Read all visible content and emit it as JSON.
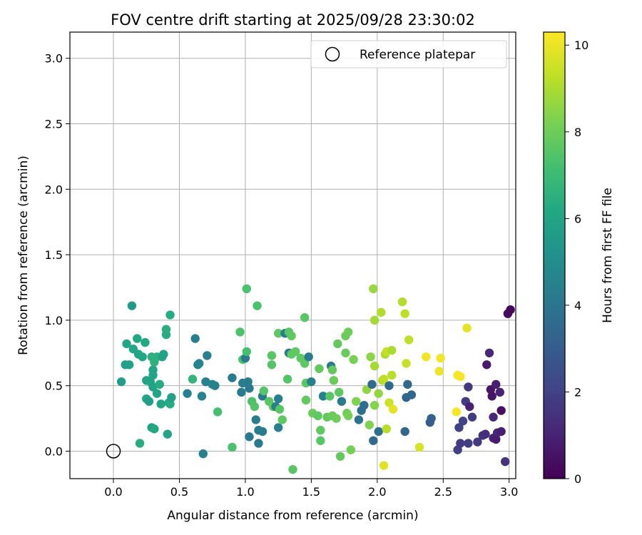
{
  "chart_data": {
    "type": "scatter",
    "title": "FOV centre drift starting at 2025/09/28 23:30:02",
    "xlabel": "Angular distance from reference (arcmin)",
    "ylabel": "Rotation from reference (arcmin)",
    "xlim": [
      -0.33,
      3.05
    ],
    "ylim": [
      -0.21,
      3.2
    ],
    "xticks": [
      "0.0",
      "0.5",
      "1.0",
      "1.5",
      "2.0",
      "2.5",
      "3.0"
    ],
    "yticks": [
      "0.0",
      "0.5",
      "1.0",
      "1.5",
      "2.0",
      "2.5",
      "3.0"
    ],
    "grid": true,
    "legend": {
      "position": "top-right",
      "entries": [
        "Reference platepar"
      ]
    },
    "colorbar": {
      "label": "Hours from first FF file",
      "colormap": "viridis",
      "range": [
        0,
        10.3
      ],
      "ticks": [
        "0",
        "2",
        "4",
        "6",
        "8",
        "10"
      ]
    },
    "reference_point": {
      "x": 0.0,
      "y": 0.0
    },
    "points": [
      {
        "x": 0.06,
        "y": 0.53,
        "h": 5.7
      },
      {
        "x": 0.09,
        "y": 0.66,
        "h": 5.8
      },
      {
        "x": 0.1,
        "y": 0.82,
        "h": 6.0
      },
      {
        "x": 0.12,
        "y": 0.66,
        "h": 5.9
      },
      {
        "x": 0.14,
        "y": 1.11,
        "h": 5.6
      },
      {
        "x": 0.15,
        "y": 0.78,
        "h": 6.1
      },
      {
        "x": 0.18,
        "y": 0.86,
        "h": 6.2
      },
      {
        "x": 0.19,
        "y": 0.74,
        "h": 6.0
      },
      {
        "x": 0.2,
        "y": 0.06,
        "h": 6.4
      },
      {
        "x": 0.22,
        "y": 0.72,
        "h": 6.1
      },
      {
        "x": 0.24,
        "y": 0.83,
        "h": 6.2
      },
      {
        "x": 0.25,
        "y": 0.54,
        "h": 5.9
      },
      {
        "x": 0.25,
        "y": 0.4,
        "h": 6.1
      },
      {
        "x": 0.27,
        "y": 0.38,
        "h": 5.7
      },
      {
        "x": 0.28,
        "y": 0.53,
        "h": 6.0
      },
      {
        "x": 0.29,
        "y": 0.72,
        "h": 6.5
      },
      {
        "x": 0.29,
        "y": 0.18,
        "h": 5.8
      },
      {
        "x": 0.3,
        "y": 0.58,
        "h": 6.1
      },
      {
        "x": 0.3,
        "y": 0.62,
        "h": 6.0
      },
      {
        "x": 0.3,
        "y": 0.49,
        "h": 5.9
      },
      {
        "x": 0.31,
        "y": 0.17,
        "h": 6.2
      },
      {
        "x": 0.31,
        "y": 0.68,
        "h": 6.6
      },
      {
        "x": 0.33,
        "y": 0.72,
        "h": 6.6
      },
      {
        "x": 0.33,
        "y": 0.44,
        "h": 6.0
      },
      {
        "x": 0.35,
        "y": 0.51,
        "h": 6.3
      },
      {
        "x": 0.36,
        "y": 0.36,
        "h": 6.0
      },
      {
        "x": 0.37,
        "y": 0.72,
        "h": 6.0
      },
      {
        "x": 0.38,
        "y": 0.74,
        "h": 5.9
      },
      {
        "x": 0.4,
        "y": 0.89,
        "h": 6.3
      },
      {
        "x": 0.4,
        "y": 0.93,
        "h": 6.4
      },
      {
        "x": 0.41,
        "y": 0.13,
        "h": 6.0
      },
      {
        "x": 0.42,
        "y": 0.37,
        "h": 6.1
      },
      {
        "x": 0.43,
        "y": 0.36,
        "h": 6.3
      },
      {
        "x": 0.43,
        "y": 1.04,
        "h": 6.3
      },
      {
        "x": 0.44,
        "y": 0.41,
        "h": 5.8
      },
      {
        "x": 0.56,
        "y": 0.44,
        "h": 4.4
      },
      {
        "x": 0.6,
        "y": 0.55,
        "h": 6.7
      },
      {
        "x": 0.62,
        "y": 0.86,
        "h": 4.4
      },
      {
        "x": 0.64,
        "y": 0.66,
        "h": 4.5
      },
      {
        "x": 0.65,
        "y": 0.67,
        "h": 4.6
      },
      {
        "x": 0.67,
        "y": 0.42,
        "h": 4.6
      },
      {
        "x": 0.68,
        "y": -0.02,
        "h": 4.5
      },
      {
        "x": 0.7,
        "y": 0.53,
        "h": 4.5
      },
      {
        "x": 0.71,
        "y": 0.73,
        "h": 4.4
      },
      {
        "x": 0.75,
        "y": 0.51,
        "h": 4.7
      },
      {
        "x": 0.77,
        "y": 0.5,
        "h": 4.5
      },
      {
        "x": 0.79,
        "y": 0.3,
        "h": 7.2
      },
      {
        "x": 0.9,
        "y": 0.56,
        "h": 4.3
      },
      {
        "x": 0.9,
        "y": 0.03,
        "h": 7.3
      },
      {
        "x": 0.96,
        "y": 0.91,
        "h": 7.4
      },
      {
        "x": 0.97,
        "y": 0.45,
        "h": 4.2
      },
      {
        "x": 0.98,
        "y": 0.52,
        "h": 4.3
      },
      {
        "x": 0.98,
        "y": 0.7,
        "h": 7.4
      },
      {
        "x": 1.0,
        "y": 0.71,
        "h": 4.3
      },
      {
        "x": 1.01,
        "y": 1.24,
        "h": 7.3
      },
      {
        "x": 1.01,
        "y": 0.76,
        "h": 7.2
      },
      {
        "x": 1.02,
        "y": 0.53,
        "h": 4.3
      },
      {
        "x": 1.03,
        "y": 0.11,
        "h": 4.2
      },
      {
        "x": 1.03,
        "y": 0.48,
        "h": 4.2
      },
      {
        "x": 1.05,
        "y": 0.38,
        "h": 7.4
      },
      {
        "x": 1.07,
        "y": 0.34,
        "h": 7.5
      },
      {
        "x": 1.08,
        "y": 0.24,
        "h": 4.3
      },
      {
        "x": 1.09,
        "y": 1.11,
        "h": 7.3
      },
      {
        "x": 1.1,
        "y": 0.06,
        "h": 4.2
      },
      {
        "x": 1.1,
        "y": 0.16,
        "h": 4.3
      },
      {
        "x": 1.13,
        "y": 0.15,
        "h": 4.3
      },
      {
        "x": 1.13,
        "y": 0.42,
        "h": 4.2
      },
      {
        "x": 1.14,
        "y": 0.46,
        "h": 7.5
      },
      {
        "x": 1.18,
        "y": 0.38,
        "h": 7.6
      },
      {
        "x": 1.2,
        "y": 0.73,
        "h": 7.6
      },
      {
        "x": 1.2,
        "y": 0.66,
        "h": 7.5
      },
      {
        "x": 1.21,
        "y": 0.34,
        "h": 7.8
      },
      {
        "x": 1.23,
        "y": 0.34,
        "h": 4.4
      },
      {
        "x": 1.25,
        "y": 0.18,
        "h": 4.5
      },
      {
        "x": 1.25,
        "y": 0.4,
        "h": 4.4
      },
      {
        "x": 1.26,
        "y": 0.32,
        "h": 7.6
      },
      {
        "x": 1.25,
        "y": 0.9,
        "h": 7.7
      },
      {
        "x": 1.28,
        "y": 0.24,
        "h": 7.7
      },
      {
        "x": 1.3,
        "y": 0.9,
        "h": 4.3
      },
      {
        "x": 1.32,
        "y": 0.55,
        "h": 7.5
      },
      {
        "x": 1.33,
        "y": 0.75,
        "h": 4.1
      },
      {
        "x": 1.33,
        "y": 0.91,
        "h": 7.6
      },
      {
        "x": 1.35,
        "y": 0.74,
        "h": 7.7
      },
      {
        "x": 1.35,
        "y": 0.88,
        "h": 7.7
      },
      {
        "x": 1.36,
        "y": -0.14,
        "h": 7.6
      },
      {
        "x": 1.38,
        "y": 0.76,
        "h": 7.7
      },
      {
        "x": 1.42,
        "y": 0.71,
        "h": 7.7
      },
      {
        "x": 1.45,
        "y": 1.02,
        "h": 7.6
      },
      {
        "x": 1.45,
        "y": 0.67,
        "h": 7.7
      },
      {
        "x": 1.46,
        "y": 0.39,
        "h": 7.8
      },
      {
        "x": 1.46,
        "y": 0.52,
        "h": 7.6
      },
      {
        "x": 1.48,
        "y": 0.72,
        "h": 4.3
      },
      {
        "x": 1.5,
        "y": 0.53,
        "h": 4.4
      },
      {
        "x": 1.51,
        "y": 0.29,
        "h": 7.9
      },
      {
        "x": 1.55,
        "y": 0.27,
        "h": 7.7
      },
      {
        "x": 1.56,
        "y": 0.63,
        "h": 7.8
      },
      {
        "x": 1.57,
        "y": 0.08,
        "h": 7.6
      },
      {
        "x": 1.57,
        "y": 0.16,
        "h": 7.7
      },
      {
        "x": 1.59,
        "y": 0.42,
        "h": 4.5
      },
      {
        "x": 1.62,
        "y": 0.26,
        "h": 7.8
      },
      {
        "x": 1.64,
        "y": 0.42,
        "h": 7.6
      },
      {
        "x": 1.65,
        "y": 0.65,
        "h": 4.3
      },
      {
        "x": 1.66,
        "y": 0.62,
        "h": 7.8
      },
      {
        "x": 1.66,
        "y": 0.27,
        "h": 7.9
      },
      {
        "x": 1.67,
        "y": 0.54,
        "h": 7.9
      },
      {
        "x": 1.69,
        "y": 0.25,
        "h": 8.0
      },
      {
        "x": 1.7,
        "y": 0.82,
        "h": 7.8
      },
      {
        "x": 1.71,
        "y": 0.45,
        "h": 7.7
      },
      {
        "x": 1.72,
        "y": -0.04,
        "h": 7.8
      },
      {
        "x": 1.73,
        "y": 0.38,
        "h": 4.2
      },
      {
        "x": 1.76,
        "y": 0.88,
        "h": 7.9
      },
      {
        "x": 1.76,
        "y": 0.75,
        "h": 7.9
      },
      {
        "x": 1.77,
        "y": 0.29,
        "h": 8.0
      },
      {
        "x": 1.78,
        "y": 0.27,
        "h": 8.1
      },
      {
        "x": 1.78,
        "y": 0.91,
        "h": 8.0
      },
      {
        "x": 1.8,
        "y": 0.01,
        "h": 8.1
      },
      {
        "x": 1.82,
        "y": 0.7,
        "h": 8.2
      },
      {
        "x": 1.84,
        "y": 0.38,
        "h": 8.3
      },
      {
        "x": 1.86,
        "y": 0.24,
        "h": 3.9
      },
      {
        "x": 1.88,
        "y": 0.31,
        "h": 3.8
      },
      {
        "x": 1.9,
        "y": 0.35,
        "h": 3.7
      },
      {
        "x": 1.92,
        "y": 0.47,
        "h": 8.6
      },
      {
        "x": 1.94,
        "y": 0.2,
        "h": 8.3
      },
      {
        "x": 1.95,
        "y": 0.72,
        "h": 8.5
      },
      {
        "x": 1.96,
        "y": 0.51,
        "h": 3.6
      },
      {
        "x": 1.97,
        "y": 0.08,
        "h": 3.6
      },
      {
        "x": 1.97,
        "y": 1.24,
        "h": 8.7
      },
      {
        "x": 1.98,
        "y": 1.0,
        "h": 8.9
      },
      {
        "x": 1.98,
        "y": 0.35,
        "h": 8.4
      },
      {
        "x": 1.98,
        "y": 0.65,
        "h": 8.9
      },
      {
        "x": 2.01,
        "y": 0.15,
        "h": 3.8
      },
      {
        "x": 2.01,
        "y": 0.44,
        "h": 8.6
      },
      {
        "x": 2.03,
        "y": 1.06,
        "h": 9.1
      },
      {
        "x": 2.04,
        "y": 0.54,
        "h": 9.0
      },
      {
        "x": 2.05,
        "y": 0.55,
        "h": 9.3
      },
      {
        "x": 2.05,
        "y": -0.11,
        "h": 9.8
      },
      {
        "x": 2.06,
        "y": 0.74,
        "h": 9.0
      },
      {
        "x": 2.07,
        "y": 0.76,
        "h": 9.4
      },
      {
        "x": 2.07,
        "y": 0.17,
        "h": 9.2
      },
      {
        "x": 2.09,
        "y": 0.5,
        "h": 3.5
      },
      {
        "x": 2.09,
        "y": 0.37,
        "h": 9.5
      },
      {
        "x": 2.11,
        "y": 0.77,
        "h": 9.0
      },
      {
        "x": 2.11,
        "y": 0.58,
        "h": 9.2
      },
      {
        "x": 2.12,
        "y": 0.32,
        "h": 9.9
      },
      {
        "x": 2.19,
        "y": 1.14,
        "h": 9.1
      },
      {
        "x": 2.21,
        "y": 1.05,
        "h": 9.3
      },
      {
        "x": 2.21,
        "y": 0.15,
        "h": 3.4
      },
      {
        "x": 2.22,
        "y": 0.41,
        "h": 3.4
      },
      {
        "x": 2.22,
        "y": 0.67,
        "h": 9.4
      },
      {
        "x": 2.23,
        "y": 0.51,
        "h": 3.5
      },
      {
        "x": 2.24,
        "y": 0.85,
        "h": 9.3
      },
      {
        "x": 2.26,
        "y": 0.43,
        "h": 3.4
      },
      {
        "x": 2.32,
        "y": 0.03,
        "h": 9.7
      },
      {
        "x": 2.37,
        "y": 0.72,
        "h": 10.1
      },
      {
        "x": 2.4,
        "y": 0.22,
        "h": 3.0
      },
      {
        "x": 2.41,
        "y": 0.25,
        "h": 3.1
      },
      {
        "x": 2.47,
        "y": 0.61,
        "h": 10.0
      },
      {
        "x": 2.48,
        "y": 0.71,
        "h": 10.1
      },
      {
        "x": 2.6,
        "y": 0.3,
        "h": 10.2
      },
      {
        "x": 2.61,
        "y": 0.58,
        "h": 10.2
      },
      {
        "x": 2.61,
        "y": 0.01,
        "h": 1.9
      },
      {
        "x": 2.62,
        "y": 0.18,
        "h": 2.0
      },
      {
        "x": 2.63,
        "y": 0.57,
        "h": 10.2
      },
      {
        "x": 2.63,
        "y": 0.06,
        "h": 1.8
      },
      {
        "x": 2.65,
        "y": 0.23,
        "h": 2.1
      },
      {
        "x": 2.67,
        "y": 0.38,
        "h": 1.8
      },
      {
        "x": 2.68,
        "y": 0.94,
        "h": 9.9
      },
      {
        "x": 2.69,
        "y": 0.06,
        "h": 1.9
      },
      {
        "x": 2.69,
        "y": 0.49,
        "h": 1.7
      },
      {
        "x": 2.7,
        "y": 0.34,
        "h": 1.0
      },
      {
        "x": 2.72,
        "y": 0.26,
        "h": 1.8
      },
      {
        "x": 2.76,
        "y": 0.07,
        "h": 1.7
      },
      {
        "x": 2.8,
        "y": 0.12,
        "h": 1.5
      },
      {
        "x": 2.82,
        "y": 0.13,
        "h": 1.4
      },
      {
        "x": 2.83,
        "y": 0.66,
        "h": 0.8
      },
      {
        "x": 2.85,
        "y": 0.75,
        "h": 1.2
      },
      {
        "x": 2.86,
        "y": 0.47,
        "h": 0.6
      },
      {
        "x": 2.87,
        "y": 0.42,
        "h": 0.6
      },
      {
        "x": 2.88,
        "y": 0.26,
        "h": 1.2
      },
      {
        "x": 2.88,
        "y": 0.1,
        "h": 1.0
      },
      {
        "x": 2.9,
        "y": 0.09,
        "h": 0.8
      },
      {
        "x": 2.9,
        "y": 0.51,
        "h": 0.9
      },
      {
        "x": 2.91,
        "y": 0.14,
        "h": 1.1
      },
      {
        "x": 2.93,
        "y": 0.45,
        "h": 1.0
      },
      {
        "x": 2.94,
        "y": 0.31,
        "h": 0.4
      },
      {
        "x": 2.94,
        "y": 0.15,
        "h": 0.9
      },
      {
        "x": 2.97,
        "y": -0.08,
        "h": 1.5
      },
      {
        "x": 2.99,
        "y": 1.05,
        "h": 0.3
      },
      {
        "x": 3.01,
        "y": 1.08,
        "h": 0.2
      }
    ]
  }
}
